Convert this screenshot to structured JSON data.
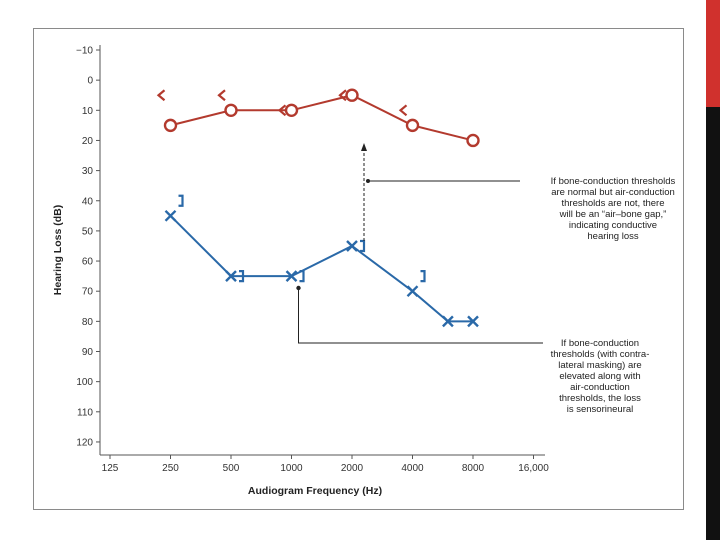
{
  "chart_data": {
    "type": "line",
    "title": "",
    "xlabel": "Audiogram Frequency (Hz)",
    "ylabel": "Hearing Loss (dB)",
    "x_scale": "log2",
    "x_ticks": [
      125,
      250,
      500,
      1000,
      2000,
      4000,
      8000,
      16000
    ],
    "x_tick_labels": [
      "125",
      "250",
      "500",
      "1000",
      "2000",
      "4000",
      "8000",
      "16,000"
    ],
    "y_ticks": [
      -10,
      0,
      10,
      20,
      30,
      40,
      50,
      60,
      70,
      80,
      90,
      100,
      110,
      120
    ],
    "y_tick_labels": [
      "−10",
      "0",
      "10",
      "20",
      "30",
      "40",
      "50",
      "60",
      "70",
      "80",
      "90",
      "100",
      "110",
      "120"
    ],
    "ylim": [
      -10,
      120
    ],
    "y_inverted": true,
    "xlim": [
      125,
      16000
    ],
    "series": [
      {
        "name": "Right ear air conduction",
        "color": "#b33a2e",
        "marker": "circle",
        "x": [
          250,
          500,
          1000,
          2000,
          4000,
          8000
        ],
        "values": [
          15,
          10,
          10,
          5,
          15,
          20
        ]
      },
      {
        "name": "Right ear bone conduction",
        "color": "#b33a2e",
        "marker": "angle-left",
        "connected": false,
        "x": [
          250,
          500,
          1000,
          2000,
          4000
        ],
        "values": [
          5,
          5,
          10,
          5,
          10
        ]
      },
      {
        "name": "Left ear air conduction",
        "color": "#2a69a8",
        "marker": "cross",
        "x": [
          250,
          500,
          1000,
          2000,
          4000,
          6000,
          8000
        ],
        "values": [
          45,
          65,
          65,
          55,
          70,
          80,
          80
        ]
      },
      {
        "name": "Left ear masked bone conduction",
        "color": "#2a69a8",
        "marker": "bracket-right",
        "connected": false,
        "x": [
          250,
          500,
          1000,
          2000,
          4000
        ],
        "values": [
          40,
          65,
          65,
          55,
          65
        ]
      }
    ],
    "annotations": [
      {
        "name": "air-bone-gap-note",
        "lines": [
          "If bone-conduction thresholds",
          "are normal but air-conduction",
          "thresholds are not, there",
          "will be an “air–bone gap,”",
          "indicating conductive",
          "hearing loss"
        ]
      },
      {
        "name": "sensorineural-note",
        "lines": [
          "If bone-conduction",
          "thresholds (with contra-",
          "lateral masking) are",
          "elevated along with",
          "air-conduction",
          "thresholds, the loss",
          "is sensorineural"
        ]
      }
    ]
  },
  "theme": {
    "accent_red": "#d0312d",
    "accent_black": "#111111"
  }
}
